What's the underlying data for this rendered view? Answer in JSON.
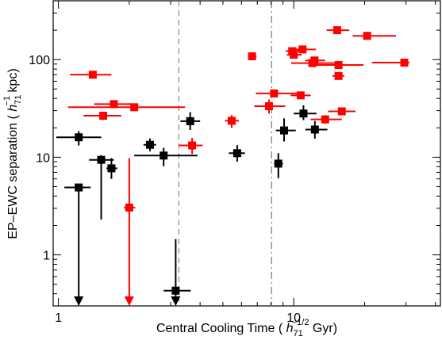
{
  "chart_data": {
    "type": "scatter",
    "xscale": "log",
    "yscale": "log",
    "xlim": [
      0.95,
      42
    ],
    "ylim": [
      0.3,
      400
    ],
    "xlabel": "Central Cooling Time ( h71^-1/2 Gyr)",
    "xlabel_parts": {
      "pre": "Central Cooling Time ( ",
      "h": "h",
      "sub": "71",
      "sup": "−1/2",
      "post": " Gyr)"
    },
    "ylabel": "EP–EWC separation ( h71^-1 kpc)",
    "ylabel_parts": {
      "pre": "EP–EWC separation ( ",
      "h": "h",
      "sub": "71",
      "sup": "−1",
      "post": " kpc)"
    },
    "xticks": [
      {
        "value": 1,
        "label": "1"
      },
      {
        "value": 10,
        "label": "10"
      }
    ],
    "yticks": [
      {
        "value": 1,
        "label": "1"
      },
      {
        "value": 10,
        "label": "10"
      },
      {
        "value": 100,
        "label": "100"
      }
    ],
    "vlines": [
      {
        "x": 3.25,
        "style": "dashed",
        "color": "#888888"
      },
      {
        "x": 8.05,
        "style": "dashdot",
        "color": "#777777"
      }
    ],
    "series": [
      {
        "color": "#000000",
        "points": [
          {
            "x": 1.22,
            "y": 16.0,
            "xlo": 0.98,
            "xhi": 1.52,
            "ylo": 13.2,
            "yhi": 18.5
          },
          {
            "x": 1.52,
            "y": 9.4,
            "xlo": 1.35,
            "xhi": 1.72,
            "ylo": 2.3,
            "yhi": 10.5
          },
          {
            "x": 1.68,
            "y": 7.7,
            "xlo": 1.6,
            "xhi": 1.78,
            "ylo": 6.0,
            "yhi": 9.8
          },
          {
            "x": 2.45,
            "y": 13.4,
            "xlo": 2.3,
            "xhi": 2.6,
            "ylo": 11.5,
            "yhi": 15.6
          },
          {
            "x": 2.8,
            "y": 10.4,
            "xlo": 2.1,
            "xhi": 3.9,
            "ylo": 8.1,
            "yhi": 12.5
          },
          {
            "x": 3.63,
            "y": 23.4,
            "xlo": 3.3,
            "xhi": 4.0,
            "ylo": 19.0,
            "yhi": 29.0
          },
          {
            "x": 5.75,
            "y": 11.0,
            "xlo": 5.3,
            "xhi": 6.2,
            "ylo": 9.0,
            "yhi": 13.3
          },
          {
            "x": 9.1,
            "y": 18.8,
            "xlo": 8.4,
            "xhi": 10.2,
            "ylo": 14.5,
            "yhi": 25.0
          },
          {
            "x": 11.0,
            "y": 28.0,
            "xlo": 10.0,
            "xhi": 12.5,
            "ylo": 24.0,
            "yhi": 34.0
          },
          {
            "x": 12.3,
            "y": 19.2,
            "xlo": 11.2,
            "xhi": 13.9,
            "ylo": 15.5,
            "yhi": 23.5
          },
          {
            "x": 8.6,
            "y": 8.6,
            "xlo": 8.25,
            "xhi": 9.0,
            "ylo": 6.1,
            "yhi": 11.0
          },
          {
            "x": 1.22,
            "y": 4.9,
            "xlo": 1.06,
            "xhi": 1.37,
            "ylo": 0.3,
            "yhi": 5.2,
            "upper_limit": true
          },
          {
            "x": 3.15,
            "y": 0.43,
            "xlo": 2.8,
            "xhi": 3.65,
            "ylo": 0.3,
            "yhi": 1.45,
            "upper_limit": true
          }
        ]
      },
      {
        "color": "#ff0000",
        "points": [
          {
            "x": 1.4,
            "y": 70.0,
            "xlo": 1.12,
            "xhi": 1.68,
            "ylo": 66,
            "yhi": 74
          },
          {
            "x": 1.72,
            "y": 35.0,
            "xlo": 1.42,
            "xhi": 2.05,
            "ylo": 32,
            "yhi": 38
          },
          {
            "x": 1.55,
            "y": 26.6,
            "xlo": 1.28,
            "xhi": 1.85,
            "ylo": 24,
            "yhi": 29
          },
          {
            "x": 2.1,
            "y": 32.5,
            "xlo": 1.1,
            "xhi": 3.45,
            "ylo": 30,
            "yhi": 35
          },
          {
            "x": 2.0,
            "y": 3.05,
            "xlo": 1.9,
            "xhi": 2.12,
            "ylo": 0.3,
            "yhi": 9.8,
            "upper_limit": true
          },
          {
            "x": 3.7,
            "y": 13.2,
            "xlo": 3.25,
            "xhi": 4.1,
            "ylo": 10.8,
            "yhi": 15.8
          },
          {
            "x": 5.45,
            "y": 23.6,
            "xlo": 5.1,
            "xhi": 5.85,
            "ylo": 20.0,
            "yhi": 27.0
          },
          {
            "x": 6.65,
            "y": 108.0,
            "xlo": 6.4,
            "xhi": 6.95,
            "ylo": 103,
            "yhi": 113
          },
          {
            "x": 7.85,
            "y": 33.3,
            "xlo": 6.8,
            "xhi": 9.2,
            "ylo": 28.0,
            "yhi": 39.0
          },
          {
            "x": 8.25,
            "y": 45.0,
            "xlo": 6.9,
            "xhi": 10.7,
            "ylo": 42,
            "yhi": 48
          },
          {
            "x": 9.85,
            "y": 122.0,
            "xlo": 9.25,
            "xhi": 10.6,
            "ylo": 116,
            "yhi": 128
          },
          {
            "x": 10.0,
            "y": 112.0,
            "xlo": 9.35,
            "xhi": 10.8,
            "ylo": 104,
            "yhi": 120
          },
          {
            "x": 10.7,
            "y": 43.0,
            "xlo": 9.7,
            "xhi": 11.8,
            "ylo": 40,
            "yhi": 46
          },
          {
            "x": 10.9,
            "y": 127.0,
            "xlo": 9.9,
            "xhi": 12.4,
            "ylo": 121,
            "yhi": 133
          },
          {
            "x": 12.25,
            "y": 98.0,
            "xlo": 11.2,
            "xhi": 13.6,
            "ylo": 93,
            "yhi": 103
          },
          {
            "x": 12.0,
            "y": 92.0,
            "xlo": 9.75,
            "xhi": 15.0,
            "ylo": 88,
            "yhi": 96
          },
          {
            "x": 13.6,
            "y": 24.4,
            "xlo": 11.8,
            "xhi": 16.0,
            "ylo": 22,
            "yhi": 27
          },
          {
            "x": 15.3,
            "y": 200.0,
            "xlo": 13.8,
            "xhi": 17.2,
            "ylo": 190,
            "yhi": 210
          },
          {
            "x": 15.5,
            "y": 88.0,
            "xlo": 12.3,
            "xhi": 19.8,
            "ylo": 84,
            "yhi": 92
          },
          {
            "x": 15.5,
            "y": 68.0,
            "xlo": 14.6,
            "xhi": 16.4,
            "ylo": 64,
            "yhi": 73
          },
          {
            "x": 16.0,
            "y": 29.5,
            "xlo": 14.0,
            "xhi": 18.3,
            "ylo": 27,
            "yhi": 32
          },
          {
            "x": 20.5,
            "y": 175.0,
            "xlo": 17.8,
            "xhi": 27.2,
            "ylo": 167,
            "yhi": 183
          },
          {
            "x": 29.5,
            "y": 93.0,
            "xlo": 21.5,
            "xhi": 31.0,
            "ylo": 89,
            "yhi": 97
          }
        ]
      }
    ]
  }
}
